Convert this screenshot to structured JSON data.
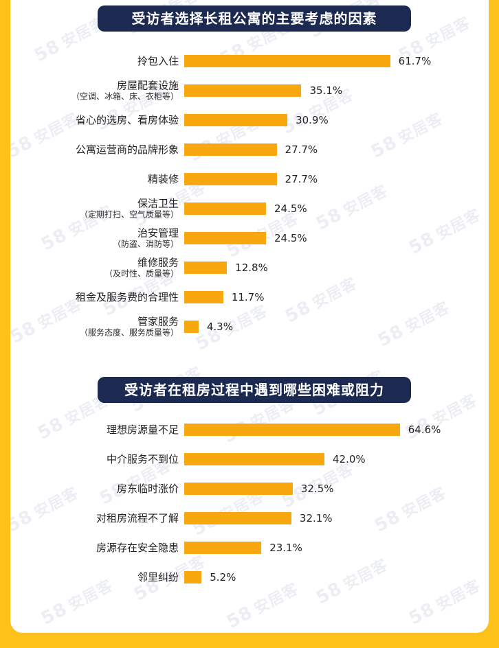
{
  "watermark": {
    "number": "58",
    "text": "安居客"
  },
  "colors": {
    "background": "#FCC21A",
    "card": "#FFFFFF",
    "title_bg": "#1C2A52",
    "bar": "#F8A70E",
    "watermark": "#E9ECF2"
  },
  "chart_data": [
    {
      "type": "bar",
      "orientation": "horizontal",
      "title": "受访者选择长租公寓的主要考虑的因素",
      "categories": [
        {
          "main": "拎包入住",
          "sub": ""
        },
        {
          "main": "房屋配套设施",
          "sub": "（空调、冰箱、床、衣柜等）"
        },
        {
          "main": "省心的选房、看房体验",
          "sub": ""
        },
        {
          "main": "公寓运营商的品牌形象",
          "sub": ""
        },
        {
          "main": "精装修",
          "sub": ""
        },
        {
          "main": "保洁卫生",
          "sub": "（定期打扫、空气质量等）"
        },
        {
          "main": "治安管理",
          "sub": "（防盗、消防等）"
        },
        {
          "main": "维修服务",
          "sub": "（及时性、质量等）"
        },
        {
          "main": "租金及服务费的合理性",
          "sub": ""
        },
        {
          "main": "管家服务",
          "sub": "（服务态度、服务质量等）"
        }
      ],
      "values": [
        61.7,
        35.1,
        30.9,
        27.7,
        27.7,
        24.5,
        24.5,
        12.8,
        11.7,
        4.3
      ],
      "value_labels": [
        "61.7%",
        "35.1%",
        "30.9%",
        "27.7%",
        "27.7%",
        "24.5%",
        "24.5%",
        "12.8%",
        "11.7%",
        "4.3%"
      ],
      "xlim": [
        0,
        70
      ],
      "grid": false
    },
    {
      "type": "bar",
      "orientation": "horizontal",
      "title": "受访者在租房过程中遇到哪些困难或阻力",
      "categories": [
        {
          "main": "理想房源量不足",
          "sub": ""
        },
        {
          "main": "中介服务不到位",
          "sub": ""
        },
        {
          "main": "房东临时涨价",
          "sub": ""
        },
        {
          "main": "对租房流程不了解",
          "sub": ""
        },
        {
          "main": "房源存在安全隐患",
          "sub": ""
        },
        {
          "main": "邻里纠纷",
          "sub": ""
        }
      ],
      "values": [
        64.6,
        42.0,
        32.5,
        32.1,
        23.1,
        5.2
      ],
      "value_labels": [
        "64.6%",
        "42.0%",
        "32.5%",
        "32.1%",
        "23.1%",
        "5.2%"
      ],
      "xlim": [
        0,
        70
      ],
      "grid": false
    }
  ]
}
